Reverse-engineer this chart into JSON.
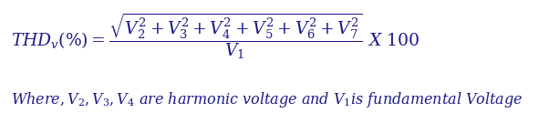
{
  "formula": "$THD_{v}(\\%) = \\dfrac{\\sqrt{V_2^2 + V_3^2 + V_4^2 + V_5^2 + V_6^2 + V_7^2}}{V_1} \\ X \\ 100$",
  "subtitle": "$Where, V_2, V_3, V_4 \\ are \\ harmonic \\ voltage \\ and \\ V_1 is \\ fundamental \\ Voltage$",
  "text_color": "#1a1a8c",
  "bg_color": "#ffffff",
  "formula_fontsize": 13.5,
  "subtitle_fontsize": 11.5,
  "fig_width": 5.91,
  "fig_height": 1.24,
  "fig_dpi": 100
}
